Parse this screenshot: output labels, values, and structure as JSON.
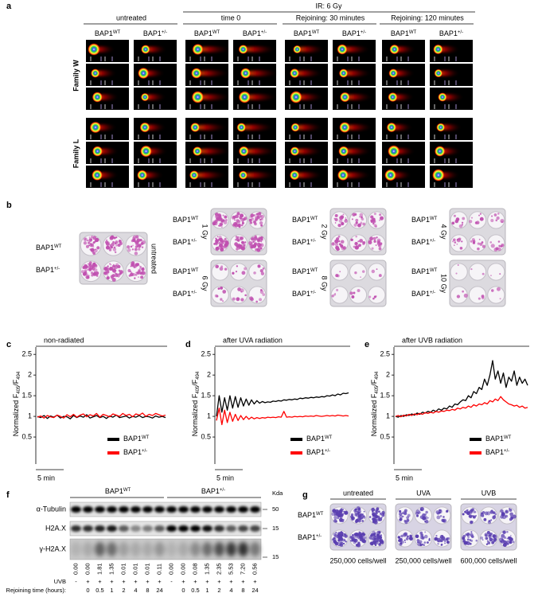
{
  "panel_labels": [
    "a",
    "b",
    "c",
    "d",
    "e",
    "f",
    "g"
  ],
  "genotypes": [
    {
      "base": "BAP1",
      "sup": "WT"
    },
    {
      "base": "BAP1",
      "sup": "+/-"
    }
  ],
  "panel_a": {
    "treatment": "IR: 6 Gy",
    "conditions": [
      "untreated",
      "time 0",
      "Rejoining: 30 minutes",
      "Rejoining: 120 minutes"
    ],
    "families": [
      "Family W",
      "Family L"
    ]
  },
  "panel_b": {
    "untreated": "untreated",
    "doses": [
      "1 Gy",
      "2 Gy",
      "4 Gy",
      "6 Gy",
      "8 Gy",
      "10 Gy"
    ]
  },
  "chart_data": [
    {
      "type": "line",
      "title": "non-radiated",
      "ylabel_parts": [
        {
          "text": "Normalized F"
        },
        {
          "text": "405",
          "sub": true
        },
        {
          "text": "/F"
        },
        {
          "text": "494",
          "sub": true
        }
      ],
      "ylim": [
        0,
        2.6
      ],
      "yticks": [
        0.5,
        1,
        1.5,
        2,
        2.5
      ],
      "scale_bar": "5 min",
      "series": [
        {
          "name": "BAP1",
          "name_sup": "WT",
          "color": "#000000",
          "values": [
            1.0,
            0.97,
            1.02,
            0.95,
            1.01,
            0.98,
            1.03,
            0.96,
            1.0,
            0.99,
            0.94,
            1.02,
            0.97,
            1.01,
            0.98,
            1.04,
            0.96,
            0.99,
            1.02,
            0.97,
            1.0,
            0.95,
            1.01,
            0.98,
            1.03,
            0.97,
            0.99,
            1.01,
            0.96,
            1.0,
            0.98,
            1.02,
            0.97,
            1.0,
            0.99,
            0.96,
            1.01,
            0.98,
            1.0,
            0.97
          ]
        },
        {
          "name": "BAP1",
          "name_sup": "+/-",
          "color": "#ff0000",
          "values": [
            0.98,
            1.01,
            0.96,
            1.02,
            0.99,
            0.97,
            1.03,
            1.0,
            0.96,
            1.04,
            0.99,
            1.05,
            0.98,
            1.03,
            1.06,
            0.99,
            1.04,
            1.01,
            1.07,
            0.98,
            1.05,
            1.02,
            0.99,
            1.06,
            1.03,
            1.0,
            1.07,
            1.02,
            1.05,
            0.99,
            1.06,
            1.03,
            1.08,
            1.0,
            1.05,
            1.02,
            1.07,
            1.04,
            1.01,
            1.03
          ]
        }
      ]
    },
    {
      "type": "line",
      "title": "after UVA radiation",
      "ylabel_parts": [
        {
          "text": "Normalized F"
        },
        {
          "text": "405",
          "sub": true
        },
        {
          "text": "/F"
        },
        {
          "text": "494",
          "sub": true
        }
      ],
      "ylim": [
        0,
        2.6
      ],
      "yticks": [
        0.5,
        1,
        1.5,
        2,
        2.5
      ],
      "scale_bar": "5 min",
      "series": [
        {
          "name": "BAP1",
          "name_sup": "WT",
          "color": "#000000",
          "values": [
            1.0,
            1.5,
            1.1,
            1.45,
            1.15,
            1.5,
            1.2,
            1.48,
            1.22,
            1.45,
            1.25,
            1.42,
            1.27,
            1.4,
            1.3,
            1.38,
            1.32,
            1.36,
            1.33,
            1.35,
            1.34,
            1.37,
            1.36,
            1.38,
            1.37,
            1.4,
            1.39,
            1.41,
            1.4,
            1.42,
            1.41,
            1.44,
            1.43,
            1.45,
            1.44,
            1.46,
            1.45,
            1.47,
            1.46,
            1.48,
            1.47,
            1.5,
            1.49,
            1.52,
            1.5,
            1.54,
            1.52,
            1.56,
            1.55,
            1.57
          ]
        },
        {
          "name": "BAP1",
          "name_sup": "+/-",
          "color": "#ff0000",
          "values": [
            0.9,
            1.2,
            0.8,
            1.15,
            0.85,
            1.1,
            0.88,
            1.05,
            0.9,
            1.02,
            0.92,
            1.0,
            0.93,
            0.98,
            0.94,
            0.97,
            0.95,
            0.97,
            0.96,
            0.98,
            0.97,
            0.98,
            0.97,
            0.99,
            0.98,
            1.12,
            0.98,
            0.99,
            0.98,
            1.0,
            0.99,
            1.0,
            0.99,
            1.01,
            1.0,
            1.01,
            1.0,
            1.02,
            1.01,
            1.0,
            1.01,
            1.02,
            1.01,
            1.02,
            1.01,
            1.03,
            1.02,
            1.01,
            1.02,
            1.01
          ]
        }
      ]
    },
    {
      "type": "line",
      "title": "after UVB radiation",
      "ylabel_parts": [
        {
          "text": "Normalized F"
        },
        {
          "text": "405",
          "sub": true
        },
        {
          "text": "/F"
        },
        {
          "text": "494",
          "sub": true
        }
      ],
      "ylim": [
        0,
        2.6
      ],
      "yticks": [
        0.5,
        1,
        1.5,
        2,
        2.5
      ],
      "scale_bar": "5 min",
      "series": [
        {
          "name": "BAP1",
          "name_sup": "WT",
          "color": "#000000",
          "values": [
            1.0,
            0.98,
            1.02,
            1.0,
            1.04,
            1.02,
            1.06,
            1.03,
            1.08,
            1.05,
            1.1,
            1.08,
            1.12,
            1.1,
            1.15,
            1.12,
            1.18,
            1.15,
            1.2,
            1.18,
            1.25,
            1.22,
            1.3,
            1.28,
            1.35,
            1.4,
            1.38,
            1.5,
            1.45,
            1.6,
            1.55,
            1.7,
            1.65,
            1.9,
            1.75,
            2.0,
            2.35,
            1.9,
            2.1,
            1.8,
            2.05,
            1.7,
            1.95,
            1.85,
            2.1,
            1.75,
            1.95,
            1.8,
            1.9,
            1.75
          ]
        },
        {
          "name": "BAP1",
          "name_sup": "+/-",
          "color": "#ff0000",
          "values": [
            1.0,
            1.02,
            0.99,
            1.03,
            1.01,
            1.05,
            1.02,
            1.06,
            1.04,
            1.07,
            1.05,
            1.09,
            1.07,
            1.1,
            1.08,
            1.12,
            1.1,
            1.13,
            1.12,
            1.15,
            1.14,
            1.17,
            1.15,
            1.2,
            1.18,
            1.22,
            1.2,
            1.25,
            1.22,
            1.28,
            1.25,
            1.3,
            1.28,
            1.33,
            1.3,
            1.38,
            1.35,
            1.42,
            1.38,
            1.48,
            1.4,
            1.35,
            1.3,
            1.28,
            1.25,
            1.27,
            1.22,
            1.25,
            1.2,
            1.22
          ]
        }
      ]
    }
  ],
  "panel_f": {
    "kda_label": "Kda",
    "blots": [
      {
        "name": "α-Tubulin",
        "kda": 50
      },
      {
        "name": "H2A.X",
        "kda": 15
      },
      {
        "name": "γ-H2A.X",
        "kda": 15
      }
    ],
    "quantification": [
      "0.00",
      "0.00",
      "1.81",
      "1.35",
      "0.01",
      "0.01",
      "0.01",
      "0.11",
      "0.00",
      "0.00",
      "0.08",
      "1.35",
      "2.35",
      "5.53",
      "7.20",
      "0.56"
    ],
    "uvb_label": "UVB",
    "uvb": [
      "-",
      "+",
      "+",
      "+",
      "+",
      "+",
      "+",
      "+",
      "-",
      "+",
      "+",
      "+",
      "+",
      "+",
      "+",
      "+"
    ],
    "time_label": "Rejoining time (hours):",
    "times": [
      null,
      0,
      0.5,
      1,
      2,
      4,
      8,
      24,
      null,
      0,
      0.5,
      1,
      2,
      4,
      8,
      24
    ]
  },
  "panel_g": {
    "conditions": [
      "untreated",
      "UVA",
      "UVB"
    ],
    "captions": [
      "250,000 cells/well",
      "250,000 cells/well",
      "600,000 cells/well"
    ]
  }
}
